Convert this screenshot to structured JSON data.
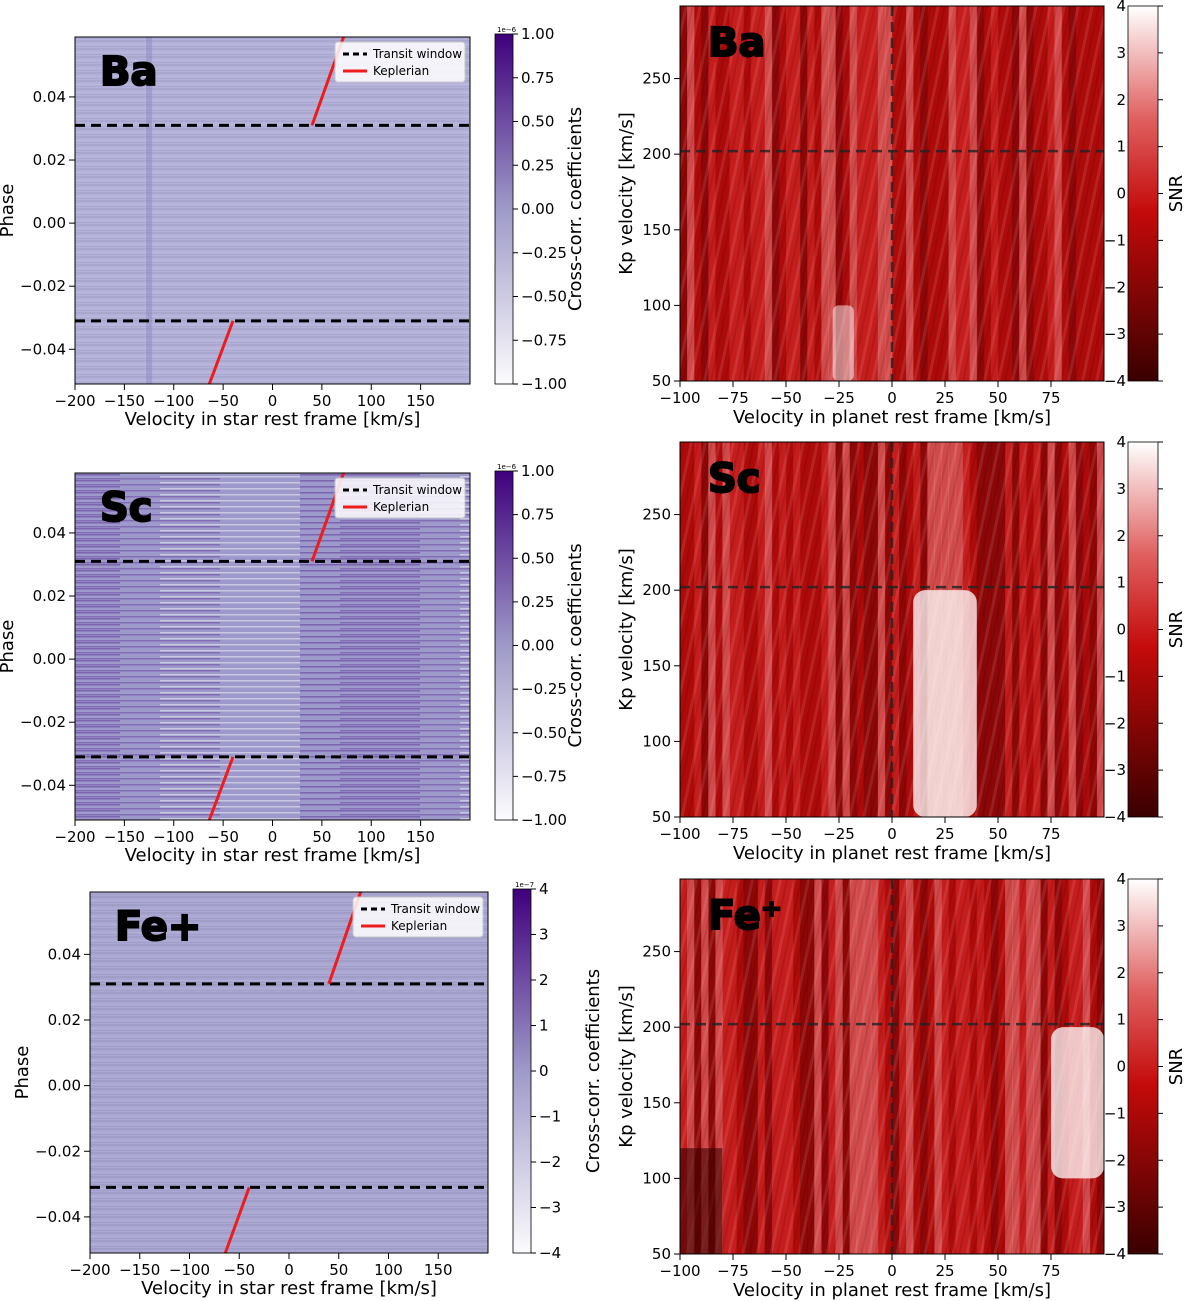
{
  "panels": [
    {
      "element": "Ba",
      "left": {
        "xlabel": "Velocity in star rest frame [km/s]",
        "ylabel": "Phase",
        "cbar_label": "Cross-corr. coefficients",
        "cbar_offset": "1e−6",
        "cbar_ticks": [
          "1.00",
          "0.75",
          "0.50",
          "0.25",
          "0.00",
          "−0.25",
          "−0.50",
          "−0.75",
          "−1.00"
        ],
        "legend": [
          "Transit window",
          "Keplerian"
        ],
        "x_ticks": [
          "−200",
          "−150",
          "−100",
          "−50",
          "0",
          "50",
          "100",
          "150"
        ],
        "y_ticks": [
          "0.04",
          "0.02",
          "0.00",
          "−0.02",
          "−0.04"
        ]
      },
      "right": {
        "xlabel": "Velocity in planet rest frame [km/s]",
        "ylabel": "Kp velocity [km/s]",
        "cbar_label": "SNR",
        "cbar_ticks": [
          "4",
          "3",
          "2",
          "1",
          "0",
          "−1",
          "−2",
          "−3",
          "−4"
        ],
        "x_ticks": [
          "−100",
          "−75",
          "−50",
          "−25",
          "0",
          "25",
          "50",
          "75"
        ],
        "y_ticks": [
          "250",
          "200",
          "150",
          "100",
          "50"
        ]
      }
    },
    {
      "element": "Sc",
      "left": {
        "xlabel": "Velocity in star rest frame [km/s]",
        "ylabel": "Phase",
        "cbar_label": "Cross-corr. coefficients",
        "cbar_offset": "1e−6",
        "cbar_ticks": [
          "1.00",
          "0.75",
          "0.50",
          "0.25",
          "0.00",
          "−0.25",
          "−0.50",
          "−0.75",
          "−1.00"
        ],
        "legend": [
          "Transit window",
          "Keplerian"
        ],
        "x_ticks": [
          "−200",
          "−150",
          "−100",
          "−50",
          "0",
          "50",
          "100",
          "150"
        ],
        "y_ticks": [
          "0.04",
          "0.02",
          "0.00",
          "−0.02",
          "−0.04"
        ]
      },
      "right": {
        "xlabel": "Velocity in planet rest frame [km/s]",
        "ylabel": "Kp velocity [km/s]",
        "cbar_label": "SNR",
        "cbar_ticks": [
          "4",
          "3",
          "2",
          "1",
          "0",
          "−1",
          "−2",
          "−3",
          "−4"
        ],
        "x_ticks": [
          "−100",
          "−75",
          "−50",
          "−25",
          "0",
          "25",
          "50",
          "75"
        ],
        "y_ticks": [
          "250",
          "200",
          "150",
          "100",
          "50"
        ]
      }
    },
    {
      "element": "Fe+",
      "right_element": "Fe⁺",
      "left": {
        "xlabel": "Velocity in star rest frame [km/s]",
        "ylabel": "Phase",
        "cbar_label": "Cross-corr. coefficients",
        "cbar_offset": "1e−7",
        "cbar_ticks": [
          "4",
          "3",
          "2",
          "1",
          "0",
          "−1",
          "−2",
          "−3",
          "−4"
        ],
        "legend": [
          "Transit window",
          "Keplerian"
        ],
        "x_ticks": [
          "−200",
          "−150",
          "−100",
          "−50",
          "0",
          "50",
          "100",
          "150"
        ],
        "y_ticks": [
          "0.04",
          "0.02",
          "0.00",
          "−0.02",
          "−0.04"
        ]
      },
      "right": {
        "xlabel": "Velocity in planet rest frame [km/s]",
        "ylabel": "Kp velocity [km/s]",
        "cbar_label": "SNR",
        "cbar_ticks": [
          "4",
          "3",
          "2",
          "1",
          "0",
          "−1",
          "−2",
          "−3",
          "−4"
        ],
        "x_ticks": [
          "−100",
          "−75",
          "−50",
          "−25",
          "0",
          "25",
          "50",
          "75"
        ],
        "y_ticks": [
          "250",
          "200",
          "150",
          "100",
          "50"
        ]
      }
    }
  ],
  "chart_data": [
    {
      "type": "heatmap",
      "element": "Ba",
      "panel": "phase-velocity map",
      "xlabel": "Velocity in star rest frame [km/s]",
      "ylabel": "Phase",
      "xlim": [
        -200,
        200
      ],
      "ylim": [
        -0.051,
        0.059
      ],
      "colorbar": {
        "label": "Cross-corr. coefficients",
        "range": [
          -1e-06,
          1e-06
        ],
        "colormap": "white-to-purple"
      },
      "transit_window_phase": [
        -0.031,
        0.031
      ],
      "keplerian_segments": [
        [
          [
            -64,
            -0.051
          ],
          [
            -40,
            -0.031
          ]
        ],
        [
          [
            40,
            0.031
          ],
          [
            72,
            0.059
          ]
        ]
      ],
      "legend": [
        "Transit window",
        "Keplerian"
      ]
    },
    {
      "type": "heatmap",
      "element": "Ba",
      "panel": "Kp-Vsys SNR map",
      "xlabel": "Velocity in planet rest frame [km/s]",
      "ylabel": "Kp velocity [km/s]",
      "xlim": [
        -100,
        100
      ],
      "ylim": [
        50,
        298
      ],
      "colorbar": {
        "label": "SNR",
        "range": [
          -4,
          4
        ],
        "colormap": "dark-red-to-white"
      },
      "crosshair": {
        "v": 0,
        "kp": 202
      }
    },
    {
      "type": "heatmap",
      "element": "Sc",
      "panel": "phase-velocity map",
      "xlabel": "Velocity in star rest frame [km/s]",
      "ylabel": "Phase",
      "xlim": [
        -200,
        200
      ],
      "ylim": [
        -0.051,
        0.059
      ],
      "colorbar": {
        "label": "Cross-corr. coefficients",
        "range": [
          -1e-06,
          1e-06
        ],
        "colormap": "white-to-purple"
      },
      "transit_window_phase": [
        -0.031,
        0.031
      ],
      "keplerian_segments": [
        [
          [
            -64,
            -0.051
          ],
          [
            -40,
            -0.031
          ]
        ],
        [
          [
            40,
            0.031
          ],
          [
            72,
            0.059
          ]
        ]
      ],
      "legend": [
        "Transit window",
        "Keplerian"
      ]
    },
    {
      "type": "heatmap",
      "element": "Sc",
      "panel": "Kp-Vsys SNR map",
      "xlabel": "Velocity in planet rest frame [km/s]",
      "ylabel": "Kp velocity [km/s]",
      "xlim": [
        -100,
        100
      ],
      "ylim": [
        50,
        298
      ],
      "colorbar": {
        "label": "SNR",
        "range": [
          -4,
          4
        ],
        "colormap": "dark-red-to-white"
      },
      "crosshair": {
        "v": 0,
        "kp": 202
      },
      "peak_region": {
        "v": [
          10,
          40
        ],
        "kp": [
          50,
          200
        ]
      }
    },
    {
      "type": "heatmap",
      "element": "Fe+",
      "panel": "phase-velocity map",
      "xlabel": "Velocity in star rest frame [km/s]",
      "ylabel": "Phase",
      "xlim": [
        -200,
        200
      ],
      "ylim": [
        -0.051,
        0.059
      ],
      "colorbar": {
        "label": "Cross-corr. coefficients",
        "range": [
          -4e-07,
          4e-07
        ],
        "colormap": "white-to-purple"
      },
      "transit_window_phase": [
        -0.031,
        0.031
      ],
      "keplerian_segments": [
        [
          [
            -64,
            -0.051
          ],
          [
            -40,
            -0.031
          ]
        ],
        [
          [
            40,
            0.031
          ],
          [
            72,
            0.059
          ]
        ]
      ],
      "legend": [
        "Transit window",
        "Keplerian"
      ]
    },
    {
      "type": "heatmap",
      "element": "Fe+",
      "panel": "Kp-Vsys SNR map",
      "xlabel": "Velocity in planet rest frame [km/s]",
      "ylabel": "Kp velocity [km/s]",
      "xlim": [
        -100,
        100
      ],
      "ylim": [
        50,
        298
      ],
      "colorbar": {
        "label": "SNR",
        "range": [
          -4,
          4
        ],
        "colormap": "dark-red-to-white"
      },
      "crosshair": {
        "v": 0,
        "kp": 202
      },
      "peak_region": {
        "v": [
          75,
          100
        ],
        "kp": [
          100,
          200
        ]
      }
    }
  ]
}
